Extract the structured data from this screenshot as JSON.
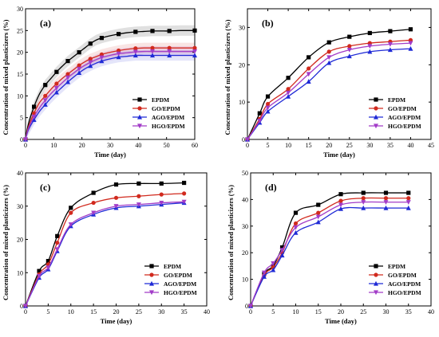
{
  "chart_data": [
    {
      "type": "line",
      "panel_label": "(a)",
      "xlabel": "Time (day)",
      "ylabel": "Concentration of mixed plasticizers (%)",
      "xlim": [
        0,
        60
      ],
      "ylim": [
        0,
        30
      ],
      "xticks": [
        0,
        10,
        20,
        30,
        40,
        50,
        60
      ],
      "yticks": [
        0,
        5,
        10,
        15,
        20,
        25,
        30
      ],
      "legend_position": "lower-right",
      "error_bands": true,
      "series": [
        {
          "name": "EPDM",
          "color": "#000000",
          "marker": "square",
          "x": [
            0,
            1,
            3,
            5,
            7,
            9,
            11,
            13,
            15,
            17,
            19,
            21,
            23,
            25,
            27,
            30,
            33,
            36,
            39,
            42,
            45,
            48,
            51,
            55,
            60
          ],
          "y": [
            0,
            3.5,
            7.5,
            10.5,
            12.5,
            14,
            15.5,
            16.8,
            18,
            19,
            20,
            21,
            22,
            22.8,
            23.3,
            23.8,
            24.2,
            24.5,
            24.7,
            24.8,
            24.9,
            24.9,
            24.9,
            25,
            25
          ]
        },
        {
          "name": "GO/EPDM",
          "color": "#d12a1e",
          "marker": "circle",
          "x": [
            0,
            1,
            3,
            5,
            7,
            9,
            11,
            13,
            15,
            17,
            19,
            21,
            23,
            25,
            27,
            30,
            33,
            36,
            39,
            42,
            45,
            48,
            51,
            55,
            60
          ],
          "y": [
            0,
            2.8,
            6,
            8.5,
            10,
            11.5,
            12.8,
            14,
            15,
            16,
            17,
            17.8,
            18.5,
            19,
            19.5,
            20,
            20.4,
            20.7,
            20.9,
            21,
            21,
            21,
            21,
            21,
            21
          ]
        },
        {
          "name": "AGO/EPDM",
          "color": "#1f2ad6",
          "marker": "triangle-up",
          "x": [
            0,
            1,
            3,
            5,
            7,
            9,
            11,
            13,
            15,
            17,
            19,
            21,
            23,
            25,
            27,
            30,
            33,
            36,
            39,
            42,
            45,
            48,
            51,
            55,
            60
          ],
          "y": [
            0,
            2.2,
            4.5,
            6.5,
            8,
            9.5,
            10.8,
            12,
            13.2,
            14.3,
            15.3,
            16.2,
            16.9,
            17.5,
            18,
            18.5,
            18.9,
            19.1,
            19.3,
            19.3,
            19.3,
            19.3,
            19.3,
            19.3,
            19.3
          ]
        },
        {
          "name": "HGO/EPDM",
          "color": "#a23cc8",
          "marker": "triangle-down",
          "x": [
            0,
            1,
            3,
            5,
            7,
            9,
            11,
            13,
            15,
            17,
            19,
            21,
            23,
            25,
            27,
            30,
            33,
            36,
            39,
            42,
            45,
            48,
            51,
            55,
            60
          ],
          "y": [
            0,
            2.5,
            5.2,
            7.3,
            9,
            10.5,
            11.8,
            13,
            14.2,
            15.2,
            16.2,
            17,
            17.7,
            18.3,
            18.8,
            19.3,
            19.7,
            19.9,
            20.1,
            20.2,
            20.2,
            20.2,
            20.2,
            20.2,
            20.2
          ]
        }
      ]
    },
    {
      "type": "line",
      "panel_label": "(b)",
      "xlabel": "Time (day)",
      "ylabel": "Concentration of mixed plasticizers (%)",
      "xlim": [
        0,
        45
      ],
      "ylim": [
        0,
        35
      ],
      "xticks": [
        0,
        5,
        10,
        15,
        20,
        25,
        30,
        35,
        40,
        45
      ],
      "yticks": [
        0,
        10,
        20,
        30
      ],
      "legend_position": "lower-right",
      "error_bands": false,
      "series": [
        {
          "name": "EPDM",
          "color": "#000000",
          "marker": "square",
          "x": [
            0,
            3,
            5,
            10,
            15,
            20,
            25,
            30,
            35,
            40
          ],
          "y": [
            0,
            7,
            11.5,
            16.5,
            22,
            26,
            27.5,
            28.5,
            29,
            29.5
          ]
        },
        {
          "name": "GO/EPDM",
          "color": "#d12a1e",
          "marker": "circle",
          "x": [
            0,
            3,
            5,
            10,
            15,
            20,
            25,
            30,
            35,
            40
          ],
          "y": [
            0,
            5.5,
            9.5,
            13.5,
            19,
            23.5,
            25,
            25.8,
            26.2,
            26.6
          ]
        },
        {
          "name": "AGO/EPDM",
          "color": "#1f2ad6",
          "marker": "triangle-up",
          "x": [
            0,
            3,
            5,
            10,
            15,
            20,
            25,
            30,
            35,
            40
          ],
          "y": [
            0,
            4.5,
            7.5,
            11.5,
            15.5,
            20.5,
            22.3,
            23.5,
            24,
            24.3
          ]
        },
        {
          "name": "HGO/EPDM",
          "color": "#a23cc8",
          "marker": "triangle-down",
          "x": [
            0,
            3,
            5,
            10,
            15,
            20,
            25,
            30,
            35,
            40
          ],
          "y": [
            0,
            5,
            8.5,
            12.5,
            17.5,
            22,
            24,
            25,
            25.5,
            25.8
          ]
        }
      ]
    },
    {
      "type": "line",
      "panel_label": "(c)",
      "xlabel": "Time (day)",
      "ylabel": "Concentration of mixed plasticizers (%)",
      "xlim": [
        0,
        40
      ],
      "ylim": [
        0,
        40
      ],
      "xticks": [
        0,
        5,
        10,
        15,
        20,
        25,
        30,
        35,
        40
      ],
      "yticks": [
        0,
        10,
        20,
        30,
        40
      ],
      "legend_position": "lower-right",
      "error_bands": false,
      "series": [
        {
          "name": "EPDM",
          "color": "#000000",
          "marker": "square",
          "x": [
            0,
            3,
            5,
            7,
            10,
            15,
            20,
            25,
            30,
            35
          ],
          "y": [
            0,
            10.5,
            13.5,
            21,
            29.5,
            34,
            36.5,
            36.8,
            36.8,
            37
          ]
        },
        {
          "name": "GO/EPDM",
          "color": "#d12a1e",
          "marker": "circle",
          "x": [
            0,
            3,
            5,
            7,
            10,
            15,
            20,
            25,
            30,
            35
          ],
          "y": [
            0,
            9.5,
            12.5,
            19,
            28,
            31,
            32.5,
            33,
            33.5,
            33.8
          ]
        },
        {
          "name": "AGO/EPDM",
          "color": "#1f2ad6",
          "marker": "triangle-up",
          "x": [
            0,
            3,
            5,
            7,
            10,
            15,
            20,
            25,
            30,
            35
          ],
          "y": [
            0,
            8.5,
            11,
            16.5,
            24,
            27.5,
            29.5,
            30,
            30.5,
            31
          ]
        },
        {
          "name": "HGO/EPDM",
          "color": "#a23cc8",
          "marker": "triangle-down",
          "x": [
            0,
            3,
            5,
            7,
            10,
            15,
            20,
            25,
            30,
            35
          ],
          "y": [
            0,
            9,
            11.5,
            17,
            24.5,
            28,
            30,
            30.5,
            31,
            31.3
          ]
        }
      ]
    },
    {
      "type": "line",
      "panel_label": "(d)",
      "xlabel": "Time (day)",
      "ylabel": "Concentration of mixed plasticizers (%)",
      "xlim": [
        0,
        40
      ],
      "ylim": [
        0,
        50
      ],
      "xticks": [
        0,
        5,
        10,
        15,
        20,
        25,
        30,
        35,
        40
      ],
      "yticks": [
        0,
        10,
        20,
        30,
        40,
        50
      ],
      "legend_position": "lower-right",
      "error_bands": false,
      "series": [
        {
          "name": "EPDM",
          "color": "#000000",
          "marker": "square",
          "x": [
            0,
            3,
            5,
            7,
            10,
            15,
            20,
            25,
            30,
            35
          ],
          "y": [
            0,
            12,
            15,
            22,
            35,
            38,
            42,
            42.5,
            42.5,
            42.5
          ]
        },
        {
          "name": "GO/EPDM",
          "color": "#d12a1e",
          "marker": "circle",
          "x": [
            0,
            3,
            5,
            7,
            10,
            15,
            20,
            25,
            30,
            35
          ],
          "y": [
            0,
            11.5,
            14.5,
            20,
            31,
            35,
            39.5,
            40.5,
            40.5,
            40.5
          ]
        },
        {
          "name": "AGO/EPDM",
          "color": "#1f2ad6",
          "marker": "triangle-up",
          "x": [
            0,
            3,
            5,
            7,
            10,
            15,
            20,
            25,
            30,
            35
          ],
          "y": [
            0,
            11,
            13.5,
            19,
            27.5,
            31.5,
            36.5,
            36.8,
            36.8,
            36.8
          ]
        },
        {
          "name": "HGO/EPDM",
          "color": "#a23cc8",
          "marker": "triangle-down",
          "x": [
            0,
            3,
            5,
            7,
            10,
            15,
            20,
            25,
            30,
            35
          ],
          "y": [
            0,
            12.5,
            16,
            21,
            29.5,
            33.5,
            38,
            39,
            39,
            39
          ]
        }
      ]
    }
  ]
}
